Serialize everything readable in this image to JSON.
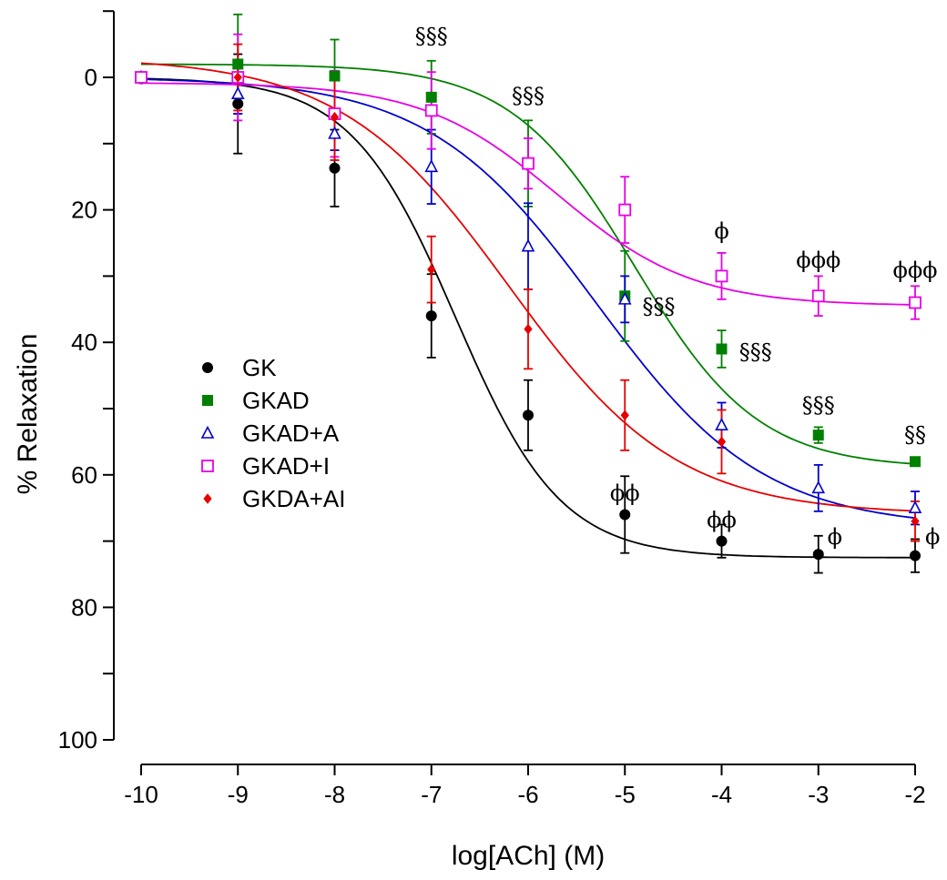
{
  "chart_data": {
    "type": "scatter",
    "xlabel": "log[ACh] (M)",
    "ylabel": "% Relaxation",
    "xlim": [
      -10,
      -2
    ],
    "ylim": [
      -10,
      100
    ],
    "y_inverted": true,
    "x_ticks": [
      -10,
      -9,
      -8,
      -7,
      -6,
      -5,
      -4,
      -3,
      -2
    ],
    "x_tick_labels": [
      "-10",
      "-9",
      "-8",
      "-7",
      "-6",
      "-5",
      "-4",
      "-3",
      "-2"
    ],
    "y_ticks": [
      0,
      20,
      40,
      60,
      80,
      100
    ],
    "y_tick_labels": [
      "0",
      "20",
      "40",
      "60",
      "80",
      "100"
    ],
    "y_minor_ticks": [
      -10,
      10,
      30,
      50,
      70,
      90
    ],
    "grid": false,
    "legend_position": "center-left",
    "series": [
      {
        "name": "GK",
        "color": "#000000",
        "marker": "circle-filled",
        "fit": {
          "bottom": 0,
          "top": 72.5,
          "logEC50": -6.75,
          "hill": 0.8
        },
        "points": [
          {
            "x": -10,
            "y": 0.2,
            "err": 0
          },
          {
            "x": -9,
            "y": 4,
            "err": 7.5
          },
          {
            "x": -8,
            "y": 13.7,
            "err": 5.8
          },
          {
            "x": -7,
            "y": 36,
            "err": 6.3
          },
          {
            "x": -6,
            "y": 51,
            "err": 5.3
          },
          {
            "x": -5,
            "y": 66,
            "err": 5.8
          },
          {
            "x": -4,
            "y": 70,
            "err": 2.5
          },
          {
            "x": -3,
            "y": 72,
            "err": 2.8
          },
          {
            "x": -2,
            "y": 72.2,
            "err": 2.5
          }
        ]
      },
      {
        "name": "GKAD",
        "color": "#008000",
        "marker": "square-filled",
        "fit": {
          "bottom": -2,
          "top": 59,
          "logEC50": -4.9,
          "hill": 0.68
        },
        "points": [
          {
            "x": -9,
            "y": -2,
            "err": 7.5
          },
          {
            "x": -8,
            "y": -0.2,
            "err": 5.5
          },
          {
            "x": -7,
            "y": 3,
            "err": 5.5
          },
          {
            "x": -6,
            "y": 13,
            "err": 6.5
          },
          {
            "x": -5,
            "y": 33,
            "err": 6.8
          },
          {
            "x": -4,
            "y": 41,
            "err": 2.8
          },
          {
            "x": -3,
            "y": 54,
            "err": 1.2
          },
          {
            "x": -2,
            "y": 58,
            "err": 0.5
          }
        ]
      },
      {
        "name": "GKAD+A",
        "color": "#0000cc",
        "marker": "triangle-open",
        "fit": {
          "bottom": 0,
          "top": 68,
          "logEC50": -5.3,
          "hill": 0.5
        },
        "points": [
          {
            "x": -10,
            "y": 0,
            "err": 0
          },
          {
            "x": -9,
            "y": 2.5,
            "err": 3
          },
          {
            "x": -8,
            "y": 8.5,
            "err": 2.5
          },
          {
            "x": -7,
            "y": 13.5,
            "err": 5.6
          },
          {
            "x": -6,
            "y": 25.5,
            "err": 6.5
          },
          {
            "x": -5,
            "y": 33.5,
            "err": 3.5
          },
          {
            "x": -4,
            "y": 52.5,
            "err": 3.4
          },
          {
            "x": -3,
            "y": 62,
            "err": 3.5
          },
          {
            "x": -2,
            "y": 65,
            "err": 2.5
          }
        ]
      },
      {
        "name": "GKAD+I",
        "color": "#e600e6",
        "marker": "square-open",
        "fit": {
          "bottom": 0.8,
          "top": 34.5,
          "logEC50": -5.7,
          "hill": 0.62
        },
        "points": [
          {
            "x": -10,
            "y": 0,
            "err": 0
          },
          {
            "x": -9,
            "y": 0,
            "err": 6.5
          },
          {
            "x": -8,
            "y": 5.5,
            "err": 6.5
          },
          {
            "x": -7,
            "y": 5,
            "err": 5.8
          },
          {
            "x": -6,
            "y": 13,
            "err": 3.8
          },
          {
            "x": -5,
            "y": 20,
            "err": 5
          },
          {
            "x": -4,
            "y": 30,
            "err": 3.5
          },
          {
            "x": -3,
            "y": 33,
            "err": 3
          },
          {
            "x": -2,
            "y": 34,
            "err": 2.5
          }
        ]
      },
      {
        "name": "GKDA+AI",
        "color": "#e60000",
        "marker": "diamond-filled",
        "fit": {
          "bottom": -3,
          "top": 66,
          "logEC50": -6.2,
          "hill": 0.5
        },
        "points": [
          {
            "x": -9,
            "y": 0,
            "err": 5
          },
          {
            "x": -8,
            "y": 6,
            "err": 6.5
          },
          {
            "x": -7,
            "y": 29,
            "err": 5
          },
          {
            "x": -6,
            "y": 38,
            "err": 6
          },
          {
            "x": -5,
            "y": 51,
            "err": 5.3
          },
          {
            "x": -4,
            "y": 55,
            "err": 4.8
          },
          {
            "x": -2,
            "y": 67,
            "err": 3
          }
        ]
      }
    ],
    "annotations": [
      {
        "text": "§§§",
        "x": -7,
        "y": -6.2
      },
      {
        "text": "§§§",
        "x": -6,
        "y": 2.8
      },
      {
        "text": "§§§",
        "x": -4.65,
        "y": 34.6
      },
      {
        "text": "§§§",
        "x": -3.65,
        "y": 41.5
      },
      {
        "text": "§§§",
        "x": -3,
        "y": 49.5
      },
      {
        "text": "§§",
        "x": -2,
        "y": 54
      },
      {
        "text": "ϕ",
        "x": -4,
        "y": 23.2
      },
      {
        "text": "ϕϕϕ",
        "x": -3,
        "y": 27.6
      },
      {
        "text": "ϕϕϕ",
        "x": -2,
        "y": 29.1
      },
      {
        "text": "ϕϕ",
        "x": -5,
        "y": 62.8
      },
      {
        "text": "ϕϕ",
        "x": -4,
        "y": 66.8
      },
      {
        "text": "ϕ",
        "x": -2.83,
        "y": 69.4
      },
      {
        "text": "ϕ",
        "x": -1.82,
        "y": 69.4
      }
    ]
  }
}
